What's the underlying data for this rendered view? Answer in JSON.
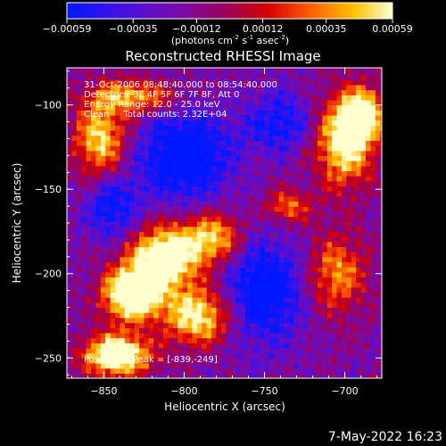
{
  "chart_data": {
    "type": "heatmap",
    "title": "Reconstructed RHESSI Image",
    "xlabel": "Heliocentric X (arcsec)",
    "ylabel": "Heliocentric Y (arcsec)",
    "xlim": [
      -873,
      -677
    ],
    "ylim": [
      -262,
      -78
    ],
    "x_ticks": [
      -850,
      -800,
      -750,
      -700
    ],
    "y_ticks": [
      -250,
      -200,
      -150,
      -100
    ],
    "colorbar": {
      "min": -0.00059,
      "max": 0.00059,
      "tick_values": [
        -0.00059,
        -0.00035,
        -0.00012,
        0.00012,
        0.00035,
        0.00059
      ],
      "tick_labels": [
        "-0.00059",
        "-0.00035",
        "-0.00012",
        "0.00012",
        "0.00035",
        "0.00059"
      ],
      "unit_prefix": "(photons cm",
      "unit_sup1": "-2",
      "unit_mid": " s",
      "unit_sup2": "-1",
      "unit_mid2": " asec",
      "unit_sup3": "-2",
      "unit_suffix": ")"
    },
    "annotations": [
      "31-Oct-2006 08:48:40.000 to 08:54:40.000",
      "Detectors: 3F 4F 5F 6F 7F 8F, Att 0",
      "Energy Range: 12.0 - 25.0 keV",
      "Clean     Total counts: 2.32E+04"
    ],
    "peak_label": "Position of Peak = [-839,-249]",
    "peak_position": [
      -839,
      -249
    ],
    "bright_regions": [
      {
        "center": [
          -812,
          -190
        ],
        "spread": [
          22,
          18
        ],
        "strength": 0.85
      },
      {
        "center": [
          -832,
          -212
        ],
        "spread": [
          18,
          15
        ],
        "strength": 0.95
      },
      {
        "center": [
          -842,
          -248
        ],
        "spread": [
          20,
          12
        ],
        "strength": 0.9
      },
      {
        "center": [
          -792,
          -225
        ],
        "spread": [
          20,
          16
        ],
        "strength": 0.7
      },
      {
        "center": [
          -782,
          -178
        ],
        "spread": [
          18,
          14
        ],
        "strength": 0.55
      },
      {
        "center": [
          -852,
          -120
        ],
        "spread": [
          16,
          24
        ],
        "strength": 0.6
      },
      {
        "center": [
          -700,
          -120
        ],
        "spread": [
          18,
          26
        ],
        "strength": 0.75
      },
      {
        "center": [
          -688,
          -105
        ],
        "spread": [
          12,
          14
        ],
        "strength": 0.65
      },
      {
        "center": [
          -735,
          -160
        ],
        "spread": [
          14,
          10
        ],
        "strength": 0.4
      },
      {
        "center": [
          -705,
          -200
        ],
        "spread": [
          18,
          24
        ],
        "strength": 0.45
      },
      {
        "center": [
          -830,
          -95
        ],
        "spread": [
          25,
          10
        ],
        "strength": 0.5
      }
    ],
    "dim_regions": [
      {
        "center": [
          -800,
          -130
        ],
        "spread": [
          28,
          26
        ],
        "strength": -0.55
      },
      {
        "center": [
          -750,
          -210
        ],
        "spread": [
          24,
          30
        ],
        "strength": -0.5
      },
      {
        "center": [
          -845,
          -160
        ],
        "spread": [
          16,
          20
        ],
        "strength": -0.4
      },
      {
        "center": [
          -740,
          -110
        ],
        "spread": [
          22,
          18
        ],
        "strength": -0.35
      }
    ]
  },
  "timestamp": "7-May-2022 16:23"
}
